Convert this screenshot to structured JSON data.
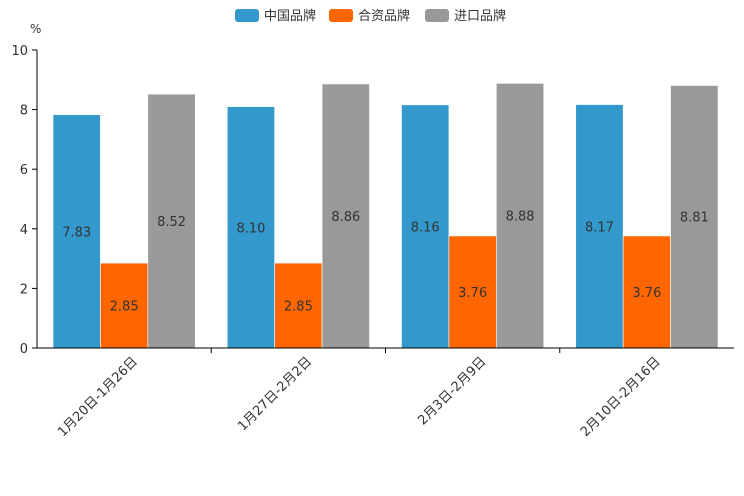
{
  "chart_data": {
    "type": "bar",
    "title": "",
    "xlabel": "",
    "ylabel": "%",
    "ylim": [
      0,
      10
    ],
    "yticks": [
      0,
      2,
      4,
      6,
      8,
      10
    ],
    "grid": false,
    "legend_position": "top-center",
    "categories": [
      "1月20日-1月26日",
      "1月27日-2月2日",
      "2月3日-2月9日",
      "2月10日-2月16日"
    ],
    "series": [
      {
        "name": "中国品牌",
        "color": "#3399cc",
        "values": [
          7.83,
          8.1,
          8.16,
          8.17
        ]
      },
      {
        "name": "合资品牌",
        "color": "#ff6600",
        "values": [
          2.85,
          2.85,
          3.76,
          3.76
        ]
      },
      {
        "name": "进口品牌",
        "color": "#999999",
        "values": [
          8.52,
          8.86,
          8.88,
          8.81
        ]
      }
    ]
  }
}
